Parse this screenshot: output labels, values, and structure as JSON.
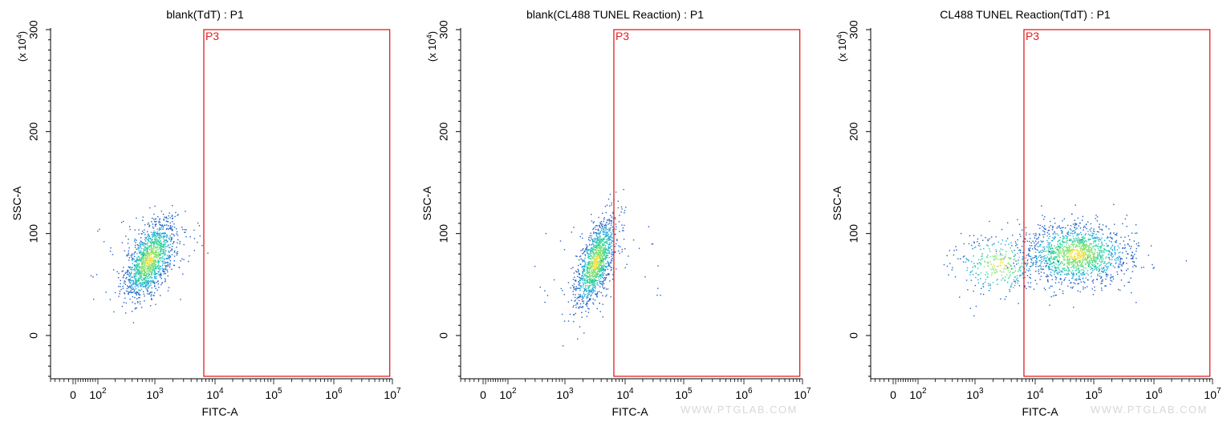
{
  "chart_data": [
    {
      "type": "scatter",
      "title": "blank(TdT) : P1",
      "xlabel": "FITC-A",
      "ylabel": "SSC-A",
      "y_multiplier": "(x 10",
      "y_multiplier_exp": "4",
      "y_multiplier_close": ")",
      "xscale": "biexponential",
      "xlim": [
        -50,
        10000000
      ],
      "ylim": [
        -40,
        300
      ],
      "yticks": [
        "0",
        "100",
        "200",
        "300"
      ],
      "xticks": [
        {
          "base": "0",
          "exp": ""
        },
        {
          "base": "10",
          "exp": "2"
        },
        {
          "base": "10",
          "exp": "3"
        },
        {
          "base": "10",
          "exp": "4"
        },
        {
          "base": "10",
          "exp": "5"
        },
        {
          "base": "10",
          "exp": "6"
        },
        {
          "base": "10",
          "exp": "7"
        }
      ],
      "gate": {
        "name": "P3",
        "x_range": [
          6500,
          9000000
        ],
        "y_range": [
          -40,
          300
        ],
        "color": "#e02020"
      },
      "population": {
        "x_center": 800,
        "x_spread_decades": 0.22,
        "y_center": 75,
        "y_spread": 16,
        "count": 1400,
        "tilt": 18
      },
      "watermark": ""
    },
    {
      "type": "scatter",
      "title": "blank(CL488 TUNEL Reaction) : P1",
      "xlabel": "FITC-A",
      "ylabel": "SSC-A",
      "y_multiplier": "(x 10",
      "y_multiplier_exp": "4",
      "y_multiplier_close": ")",
      "xscale": "biexponential",
      "xlim": [
        -50,
        10000000
      ],
      "ylim": [
        -40,
        300
      ],
      "yticks": [
        "0",
        "100",
        "200",
        "300"
      ],
      "xticks": [
        {
          "base": "0",
          "exp": ""
        },
        {
          "base": "10",
          "exp": "2"
        },
        {
          "base": "10",
          "exp": "3"
        },
        {
          "base": "10",
          "exp": "4"
        },
        {
          "base": "10",
          "exp": "5"
        },
        {
          "base": "10",
          "exp": "6"
        },
        {
          "base": "10",
          "exp": "7"
        }
      ],
      "gate": {
        "name": "P3",
        "x_range": [
          6500,
          9000000
        ],
        "y_range": [
          -40,
          300
        ],
        "color": "#e02020"
      },
      "population": {
        "x_center": 3200,
        "x_spread_decades": 0.17,
        "y_center": 72,
        "y_spread": 17,
        "count": 1300,
        "tilt": 22
      },
      "watermark": "WWW.PTGLAB.COM"
    },
    {
      "type": "scatter",
      "title": "CL488 TUNEL Reaction(TdT) : P1",
      "xlabel": "FITC-A",
      "ylabel": "SSC-A",
      "y_multiplier": "(x 10",
      "y_multiplier_exp": "4",
      "y_multiplier_close": ")",
      "xscale": "biexponential",
      "xlim": [
        -50,
        10000000
      ],
      "ylim": [
        -40,
        300
      ],
      "yticks": [
        "0",
        "100",
        "200",
        "300"
      ],
      "xticks": [
        {
          "base": "0",
          "exp": ""
        },
        {
          "base": "10",
          "exp": "2"
        },
        {
          "base": "10",
          "exp": "3"
        },
        {
          "base": "10",
          "exp": "4"
        },
        {
          "base": "10",
          "exp": "5"
        },
        {
          "base": "10",
          "exp": "6"
        },
        {
          "base": "10",
          "exp": "7"
        }
      ],
      "gate": {
        "name": "P3",
        "x_range": [
          6500,
          9000000
        ],
        "y_range": [
          -40,
          300
        ],
        "color": "#e02020"
      },
      "population": {
        "x_center": 50000,
        "x_spread_decades": 0.45,
        "y_center": 80,
        "y_spread": 15,
        "count": 1500,
        "tilt": 0,
        "secondary": {
          "x_center": 2500,
          "x_spread_decades": 0.35,
          "y_center": 70,
          "y_spread": 15,
          "count": 350
        }
      },
      "watermark": "WWW.PTGLAB.COM"
    }
  ]
}
